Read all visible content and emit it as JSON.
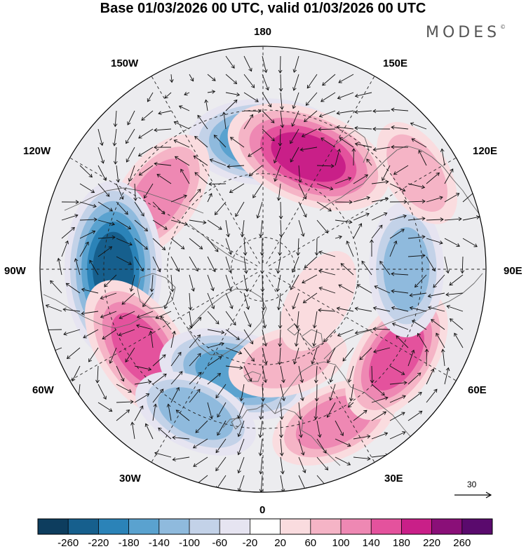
{
  "title": "Base 01/03/2026 00 UTC, valid 01/03/2026 00 UTC",
  "brand": "MODES",
  "brand_mark": "©",
  "longitude_labels": {
    "n180": "180",
    "w150": "150W",
    "e150": "150E",
    "w120": "120W",
    "e120": "120E",
    "w90": "90W",
    "e90": "90E",
    "w60": "60W",
    "e60": "60E",
    "w30": "30W",
    "e30": "30E",
    "s0": "0"
  },
  "wind_scale_label": "30",
  "colorbar": {
    "ticks": [
      "-260",
      "-220",
      "-180",
      "-140",
      "-100",
      "-60",
      "-20",
      "20",
      "60",
      "100",
      "140",
      "180",
      "220",
      "260"
    ],
    "colors": [
      "#0d3d5e",
      "#165f8d",
      "#2b83b8",
      "#5aa2cf",
      "#8fbadd",
      "#c3d2e8",
      "#e6e4f1",
      "#ffffff",
      "#fadcdf",
      "#f5b4c6",
      "#ee88b3",
      "#e4529d",
      "#c91f88",
      "#8a0f78",
      "#5a0a6d"
    ]
  },
  "anomaly_centers": [
    {
      "name": "pacific-low-180",
      "sign": -1,
      "magnitude": 200,
      "lon": 178,
      "lat": 50
    },
    {
      "name": "bering-high",
      "sign": 1,
      "magnitude": 230,
      "lon": 158,
      "lat": 52
    },
    {
      "name": "alaska-high",
      "sign": 1,
      "magnitude": 150,
      "lon": -125,
      "lat": 50
    },
    {
      "name": "canada-low",
      "sign": -1,
      "magnitude": 250,
      "lon": -90,
      "lat": 43
    },
    {
      "name": "atlantic-high",
      "sign": 1,
      "magnitude": 190,
      "lon": -57,
      "lat": 44
    },
    {
      "name": "iceland-low",
      "sign": -1,
      "magnitude": 190,
      "lon": -15,
      "lat": 56
    },
    {
      "name": "azores-trough",
      "sign": -1,
      "magnitude": 120,
      "lon": -25,
      "lat": 40
    },
    {
      "name": "europe-high",
      "sign": 1,
      "magnitude": 130,
      "lon": 25,
      "lat": 37
    },
    {
      "name": "scandinavia-high",
      "sign": 1,
      "magnitude": 100,
      "lon": 15,
      "lat": 60
    },
    {
      "name": "central-asia-high",
      "sign": 1,
      "magnitude": 160,
      "lon": 57,
      "lat": 40
    },
    {
      "name": "siberia-low",
      "sign": -1,
      "magnitude": 140,
      "lon": 90,
      "lat": 45
    },
    {
      "name": "arctic-weak-high",
      "sign": 1,
      "magnitude": 70,
      "lon": 60,
      "lat": 70
    },
    {
      "name": "east-asia-high",
      "sign": 1,
      "magnitude": 80,
      "lon": 122,
      "lat": 33
    }
  ]
}
